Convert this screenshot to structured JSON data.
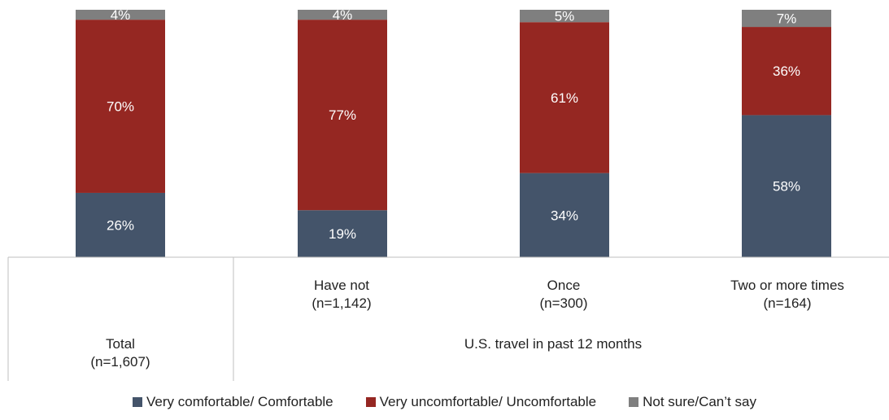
{
  "chart_data": {
    "type": "bar",
    "stacked": true,
    "categories": [
      "Total (n=1,607)",
      "Have not (n=1,142)",
      "Once (n=300)",
      "Two or more times (n=164)"
    ],
    "category_labels": [
      {
        "line1": "Total",
        "line2": "(n=1,607)"
      },
      {
        "line1": "Have not",
        "line2": "(n=1,142)"
      },
      {
        "line1": "Once",
        "line2": "(n=300)"
      },
      {
        "line1": "Two or more times",
        "line2": "(n=164)"
      }
    ],
    "group_label": "U.S. travel in past 12 months",
    "series": [
      {
        "name": "Very comfortable/ Comfortable",
        "color": "#44546A",
        "values": [
          26,
          19,
          34,
          58
        ],
        "labels": [
          "26%",
          "19%",
          "34%",
          "58%"
        ],
        "label_color": "#ffffff"
      },
      {
        "name": "Very uncomfortable/ Uncomfortable",
        "color": "#952722",
        "values": [
          70,
          77,
          61,
          36
        ],
        "labels": [
          "70%",
          "77%",
          "61%",
          "36%"
        ],
        "label_color": "#ffffff"
      },
      {
        "name": "Not sure/Can’t say",
        "color": "#7F7F7F",
        "values": [
          4,
          4,
          5,
          7
        ],
        "labels": [
          "4%",
          "4%",
          "5%",
          "7%"
        ],
        "label_color": "#ffffff"
      }
    ],
    "ylim": [
      0,
      100
    ],
    "legend_position": "bottom",
    "grid": false
  }
}
